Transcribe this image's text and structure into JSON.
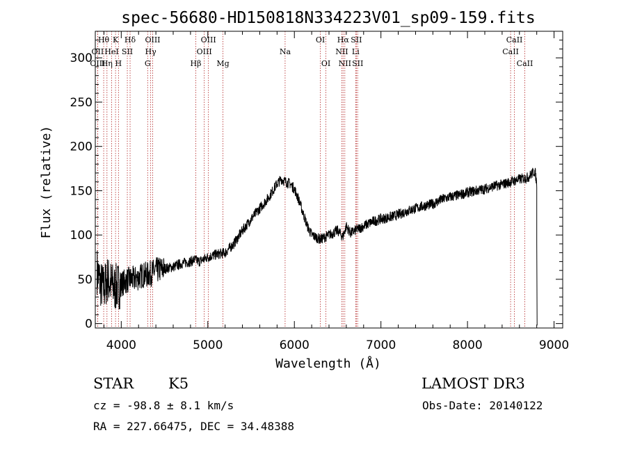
{
  "chart_data": {
    "type": "line",
    "title": "spec-56680-HD150818N334223V01_sp09-159.fits",
    "xlabel": "Wavelength (Å)",
    "ylabel": "Flux (relative)",
    "xlim": [
      3700,
      9100
    ],
    "ylim": [
      -5,
      330
    ],
    "x_ticks": [
      4000,
      5000,
      6000,
      7000,
      8000,
      9000
    ],
    "x_tick_labels": [
      "4000",
      "5000",
      "6000",
      "7000",
      "8000",
      "9000"
    ],
    "y_ticks": [
      0,
      50,
      100,
      150,
      200,
      250,
      300
    ],
    "y_tick_labels": [
      "0",
      "50",
      "100",
      "150",
      "200",
      "250",
      "300"
    ],
    "grid": false,
    "series": [
      {
        "name": "flux",
        "color": "#000000",
        "x": [
          3720,
          3760,
          3800,
          3840,
          3880,
          3920,
          3960,
          4000,
          4050,
          4100,
          4150,
          4200,
          4250,
          4300,
          4350,
          4400,
          4500,
          4600,
          4700,
          4800,
          4850,
          4900,
          5000,
          5100,
          5200,
          5300,
          5400,
          5500,
          5600,
          5700,
          5750,
          5800,
          5850,
          5900,
          5950,
          6000,
          6050,
          6100,
          6150,
          6200,
          6300,
          6400,
          6500,
          6560,
          6600,
          6650,
          6700,
          6800,
          6900,
          7000,
          7100,
          7200,
          7300,
          7400,
          7500,
          7600,
          7700,
          7800,
          7900,
          8000,
          8100,
          8200,
          8300,
          8400,
          8500,
          8600,
          8700,
          8750,
          8780,
          8800
        ],
        "y": [
          60,
          45,
          40,
          50,
          45,
          40,
          42,
          45,
          48,
          50,
          50,
          52,
          55,
          55,
          57,
          60,
          62,
          64,
          68,
          70,
          72,
          70,
          75,
          78,
          80,
          90,
          105,
          118,
          130,
          142,
          150,
          158,
          163,
          160,
          158,
          152,
          140,
          125,
          110,
          100,
          95,
          100,
          105,
          98,
          110,
          102,
          105,
          110,
          115,
          118,
          120,
          123,
          127,
          130,
          133,
          135,
          140,
          143,
          145,
          148,
          150,
          152,
          155,
          157,
          160,
          163,
          165,
          170,
          172,
          158
        ]
      }
    ],
    "spectral_lines": [
      {
        "label": "Hθ",
        "x": 3797,
        "row": 1
      },
      {
        "label": "OII",
        "x": 3727,
        "row": 2
      },
      {
        "label": "OIII",
        "x": 3727,
        "row": 3
      },
      {
        "label": "K",
        "x": 3934,
        "row": 1
      },
      {
        "label": "HeI",
        "x": 3889,
        "row": 2
      },
      {
        "label": "Hη",
        "x": 3835,
        "row": 3
      },
      {
        "label": "H",
        "x": 3968,
        "row": 3
      },
      {
        "label": "Hδ",
        "x": 4102,
        "row": 1
      },
      {
        "label": "SII",
        "x": 4070,
        "row": 2
      },
      {
        "label": "OIII",
        "x": 4363,
        "row": 1
      },
      {
        "label": "Hγ",
        "x": 4340,
        "row": 2
      },
      {
        "label": "G",
        "x": 4305,
        "row": 3
      },
      {
        "label": "Hβ",
        "x": 4861,
        "row": 3
      },
      {
        "label": "OIII",
        "x": 5007,
        "row": 1
      },
      {
        "label": "OIII",
        "x": 4959,
        "row": 2
      },
      {
        "label": "Mg",
        "x": 5175,
        "row": 3
      },
      {
        "label": "Na",
        "x": 5893,
        "row": 2
      },
      {
        "label": "OI",
        "x": 6300,
        "row": 1
      },
      {
        "label": "OI",
        "x": 6364,
        "row": 3
      },
      {
        "label": "Hα",
        "x": 6563,
        "row": 1
      },
      {
        "label": "NII",
        "x": 6548,
        "row": 2
      },
      {
        "label": "NII",
        "x": 6583,
        "row": 3
      },
      {
        "label": "SII",
        "x": 6716,
        "row": 1
      },
      {
        "label": "Li",
        "x": 6708,
        "row": 2
      },
      {
        "label": "SII",
        "x": 6731,
        "row": 3
      },
      {
        "label": "CaII",
        "x": 8542,
        "row": 1
      },
      {
        "label": "CaII",
        "x": 8498,
        "row": 2
      },
      {
        "label": "CaII",
        "x": 8662,
        "row": 3
      }
    ]
  },
  "info": {
    "object_class": "STAR",
    "subclass": "K5",
    "survey": "LAMOST DR3",
    "velocity": "cz = -98.8 ± 8.1 km/s",
    "obs_date": "Obs-Date: 20140122",
    "coordinates": "RA = 227.66475, DEC =  34.48388"
  }
}
